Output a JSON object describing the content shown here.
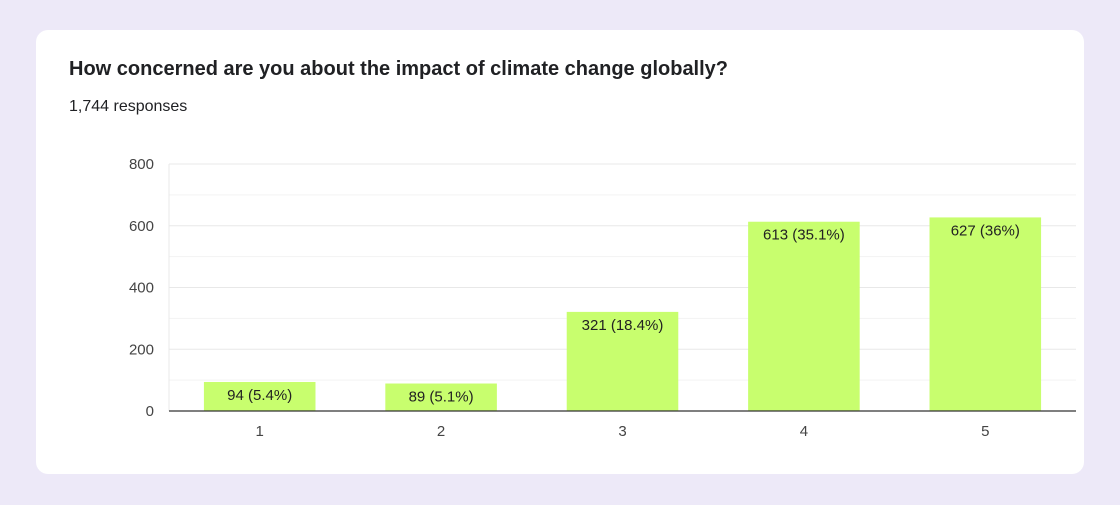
{
  "question": {
    "title": "How concerned are you about the impact of climate change globally?",
    "responses": "1,744 responses"
  },
  "colors": {
    "bar": "#c8fe6e",
    "gridline": "#e8e8e8",
    "minor_gridline": "#f3f3f3",
    "axis": "#333333",
    "background": "#ede9f8",
    "card": "#ffffff"
  },
  "chart_data": {
    "type": "bar",
    "categories": [
      "1",
      "2",
      "3",
      "4",
      "5"
    ],
    "values": [
      94,
      89,
      321,
      613,
      627
    ],
    "data_labels": [
      "94 (5.4%)",
      "89 (5.1%)",
      "321 (18.4%)",
      "613 (35.1%)",
      "627 (36%)"
    ],
    "yticks": [
      0,
      200,
      400,
      600,
      800
    ],
    "ylim": [
      0,
      800
    ],
    "grid": true,
    "legend": "none"
  }
}
